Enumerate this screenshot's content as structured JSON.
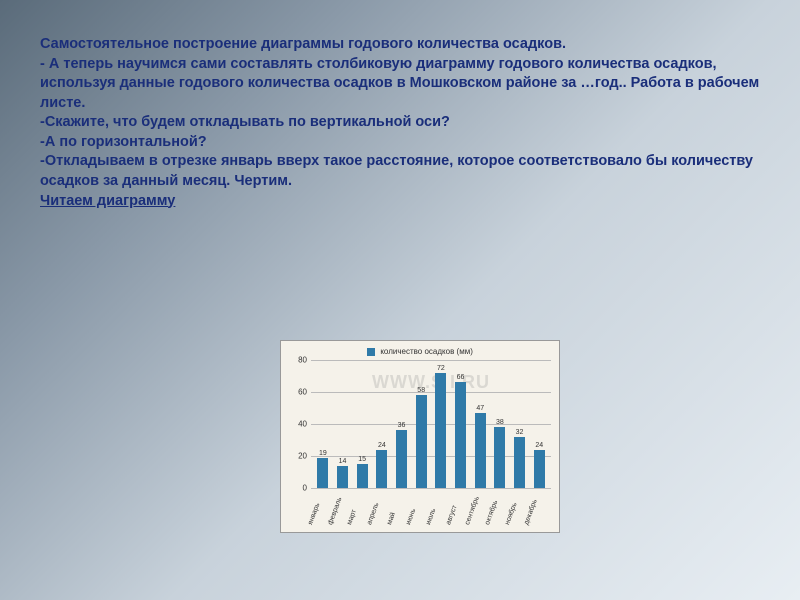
{
  "text": {
    "p1": "Самостоятельное построение диаграммы годового количества осадков.",
    "p2": "- А теперь научимся сами составлять  столбиковую диаграмму годового количества осадков, используя данные годового количества осадков в Мошковском районе за …год.. Работа в рабочем листе.",
    "p3": "-Скажите, что будем откладывать по вертикальной оси?",
    "p4": "-А по горизонтальной?",
    "p5": "-Откладываем в отрезке январь вверх такое расстояние, которое соответствовало бы количеству осадков за данный месяц. Чертим.",
    "p6": "Читаем диаграмму"
  },
  "chart": {
    "type": "bar",
    "legend_label": "количество осадков (мм)",
    "bar_color": "#2f7aa8",
    "legend_swatch_color": "#2f7aa8",
    "background_color": "#f5f2ea",
    "grid_color": "#bbbbbb",
    "watermark": "WWW.S    I.RU",
    "ylim_max": 80,
    "yticks": [
      0,
      20,
      40,
      60,
      80
    ],
    "categories": [
      "январь",
      "февраль",
      "март",
      "апрель",
      "май",
      "июнь",
      "июль",
      "август",
      "сентябрь",
      "октябрь",
      "ноябрь",
      "декабрь"
    ],
    "values": [
      19,
      14,
      15,
      24,
      36,
      58,
      72,
      66,
      47,
      38,
      32,
      24
    ]
  }
}
